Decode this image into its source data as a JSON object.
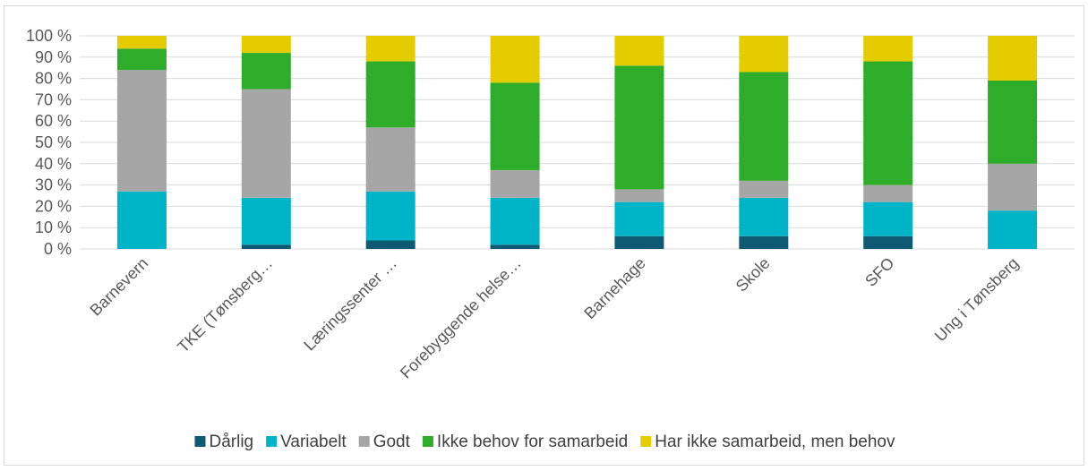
{
  "chart_data": {
    "type": "bar",
    "stacked": true,
    "percent": true,
    "categories": [
      "Barnevern",
      "TKE (Tønsberg…",
      "Læringssenter …",
      "Forebyggende helse…",
      "Barnehage",
      "Skole",
      "SFO",
      "Ung i Tønsberg"
    ],
    "series": [
      {
        "name": "Dårlig",
        "color": "#0f5a73",
        "values": [
          0,
          2,
          4,
          2,
          6,
          6,
          6,
          0
        ]
      },
      {
        "name": "Variabelt",
        "color": "#00b4c8",
        "values": [
          27,
          22,
          23,
          22,
          16,
          18,
          16,
          18
        ]
      },
      {
        "name": "Godt",
        "color": "#a6a6a6",
        "values": [
          57,
          51,
          30,
          13,
          6,
          8,
          8,
          22
        ]
      },
      {
        "name": "Ikke behov for samarbeid",
        "color": "#2ead2a",
        "values": [
          10,
          17,
          31,
          41,
          58,
          51,
          58,
          39
        ]
      },
      {
        "name": "Har ikke samarbeid, men behov",
        "color": "#e4cc00",
        "values": [
          6,
          8,
          12,
          22,
          14,
          17,
          12,
          21
        ]
      }
    ],
    "y_ticks": [
      "0 %",
      "10 %",
      "20 %",
      "30 %",
      "40 %",
      "50 %",
      "60 %",
      "70 %",
      "80 %",
      "90 %",
      "100 %"
    ],
    "ylim": [
      0,
      100
    ],
    "grid": true,
    "legend_position": "bottom"
  }
}
